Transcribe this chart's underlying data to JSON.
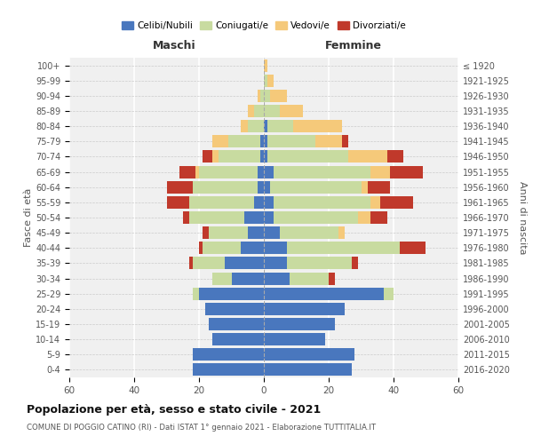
{
  "age_groups": [
    "0-4",
    "5-9",
    "10-14",
    "15-19",
    "20-24",
    "25-29",
    "30-34",
    "35-39",
    "40-44",
    "45-49",
    "50-54",
    "55-59",
    "60-64",
    "65-69",
    "70-74",
    "75-79",
    "80-84",
    "85-89",
    "90-94",
    "95-99",
    "100+"
  ],
  "birth_years": [
    "2016-2020",
    "2011-2015",
    "2006-2010",
    "2001-2005",
    "1996-2000",
    "1991-1995",
    "1986-1990",
    "1981-1985",
    "1976-1980",
    "1971-1975",
    "1966-1970",
    "1961-1965",
    "1956-1960",
    "1951-1955",
    "1946-1950",
    "1941-1945",
    "1936-1940",
    "1931-1935",
    "1926-1930",
    "1921-1925",
    "≤ 1920"
  ],
  "colors": {
    "celibi": "#4977be",
    "coniugati": "#c8dba0",
    "vedovi": "#f5c97a",
    "divorziati": "#c0392b"
  },
  "males": {
    "celibi": [
      22,
      22,
      16,
      17,
      18,
      20,
      10,
      12,
      7,
      5,
      6,
      3,
      2,
      2,
      1,
      1,
      0,
      0,
      0,
      0,
      0
    ],
    "coniugati": [
      0,
      0,
      0,
      0,
      0,
      2,
      6,
      10,
      12,
      12,
      17,
      20,
      20,
      18,
      13,
      10,
      5,
      3,
      1,
      0,
      0
    ],
    "vedovi": [
      0,
      0,
      0,
      0,
      0,
      0,
      0,
      0,
      0,
      0,
      0,
      0,
      0,
      1,
      2,
      5,
      2,
      2,
      1,
      0,
      0
    ],
    "divorziati": [
      0,
      0,
      0,
      0,
      0,
      0,
      0,
      1,
      1,
      2,
      2,
      7,
      8,
      5,
      3,
      0,
      0,
      0,
      0,
      0,
      0
    ]
  },
  "females": {
    "celibi": [
      27,
      28,
      19,
      22,
      25,
      37,
      8,
      7,
      7,
      5,
      3,
      3,
      2,
      3,
      1,
      1,
      1,
      0,
      0,
      0,
      0
    ],
    "coniugati": [
      0,
      0,
      0,
      0,
      0,
      3,
      12,
      20,
      35,
      18,
      26,
      30,
      28,
      30,
      25,
      15,
      8,
      5,
      2,
      1,
      0
    ],
    "vedovi": [
      0,
      0,
      0,
      0,
      0,
      0,
      0,
      0,
      0,
      2,
      4,
      3,
      2,
      6,
      12,
      8,
      15,
      7,
      5,
      2,
      1
    ],
    "divorziati": [
      0,
      0,
      0,
      0,
      0,
      0,
      2,
      2,
      8,
      0,
      5,
      10,
      7,
      10,
      5,
      2,
      0,
      0,
      0,
      0,
      0
    ]
  },
  "xlim": 60,
  "title": "Popolazione per età, sesso e stato civile - 2021",
  "subtitle": "COMUNE DI POGGIO CATINO (RI) - Dati ISTAT 1° gennaio 2021 - Elaborazione TUTTITALIA.IT",
  "xlabel_left": "Maschi",
  "xlabel_right": "Femmine",
  "ylabel_left": "Fasce di età",
  "ylabel_right": "Anni di nascita",
  "legend_labels": [
    "Celibi/Nubili",
    "Coniugati/e",
    "Vedovi/e",
    "Divorziati/e"
  ],
  "background_color": "#f0f0f0"
}
